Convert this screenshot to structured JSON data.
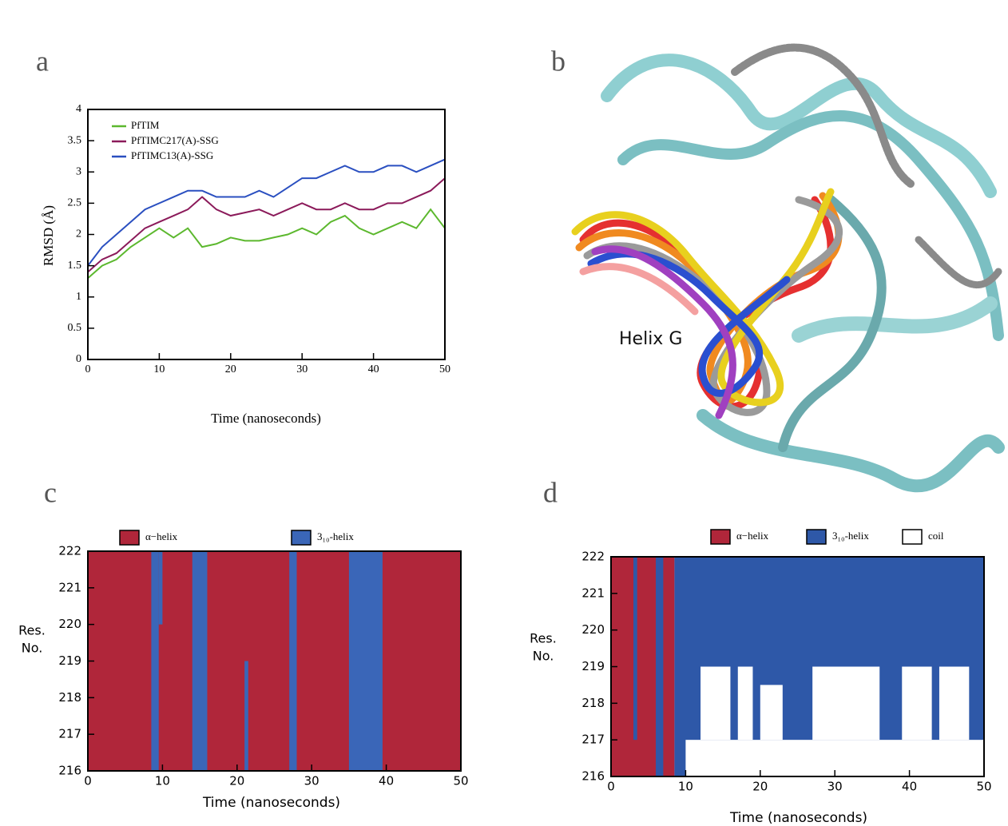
{
  "chart_data": [
    {
      "type": "line",
      "panel_label": "a",
      "xlabel": "Time (nanoseconds)",
      "ylabel": "RMSD (Å)",
      "x": [
        0,
        2,
        4,
        6,
        8,
        10,
        12,
        14,
        16,
        18,
        20,
        22,
        24,
        26,
        28,
        30,
        32,
        34,
        36,
        38,
        40,
        42,
        44,
        46,
        48,
        50
      ],
      "xlim": [
        0,
        50
      ],
      "xticks": [
        0,
        10,
        20,
        30,
        40,
        50
      ],
      "ylim": [
        0,
        4
      ],
      "yticks": [
        0,
        0.5,
        1,
        1.5,
        2,
        2.5,
        3,
        3.5,
        4
      ],
      "series": [
        {
          "name": "PfTIM",
          "color": "#5cb82e",
          "values": [
            1.3,
            1.5,
            1.6,
            1.8,
            1.95,
            2.1,
            1.95,
            2.1,
            1.8,
            1.85,
            1.95,
            1.9,
            1.9,
            1.95,
            2.0,
            2.1,
            2.0,
            2.2,
            2.3,
            2.1,
            2.0,
            2.1,
            2.2,
            2.1,
            2.4,
            2.1
          ]
        },
        {
          "name": "PfTIMC217(A)-SSG",
          "color": "#8b1a5a",
          "values": [
            1.4,
            1.6,
            1.7,
            1.9,
            2.1,
            2.2,
            2.3,
            2.4,
            2.6,
            2.4,
            2.3,
            2.35,
            2.4,
            2.3,
            2.4,
            2.5,
            2.4,
            2.4,
            2.5,
            2.4,
            2.4,
            2.5,
            2.5,
            2.6,
            2.7,
            2.9
          ]
        },
        {
          "name": "PfTIMC13(A)-SSG",
          "color": "#2a4fc0",
          "values": [
            1.5,
            1.8,
            2.0,
            2.2,
            2.4,
            2.5,
            2.6,
            2.7,
            2.7,
            2.6,
            2.6,
            2.6,
            2.7,
            2.6,
            2.75,
            2.9,
            2.9,
            3.0,
            3.1,
            3.0,
            3.0,
            3.1,
            3.1,
            3.0,
            3.1,
            3.2
          ]
        }
      ]
    },
    {
      "type": "timeline",
      "panel_label": "c",
      "xlabel": "Time (nanoseconds)",
      "ylabel": [
        "Res.",
        "No."
      ],
      "xlim": [
        0,
        50
      ],
      "xticks": [
        0,
        10,
        20,
        30,
        40,
        50
      ],
      "ylim": [
        216,
        222
      ],
      "yticks": [
        216,
        217,
        218,
        219,
        220,
        221,
        222
      ],
      "series": [
        {
          "name": "α−helix",
          "color": "#b0263a",
          "intervals": [
            [
              0,
              50,
              216,
              222
            ]
          ]
        },
        {
          "name": "3₁₀-helix",
          "color": "#3a66b8",
          "intervals": [
            [
              8.5,
              9.5,
              216,
              222
            ],
            [
              14,
              16,
              216,
              222
            ],
            [
              27,
              28,
              216,
              222
            ],
            [
              35,
              39.5,
              216,
              222
            ],
            [
              9.5,
              10,
              220,
              222
            ],
            [
              21,
              21.5,
              216,
              219
            ]
          ]
        }
      ]
    },
    {
      "type": "timeline",
      "panel_label": "d",
      "xlabel": "Time (nanoseconds)",
      "ylabel": [
        "Res.",
        "No."
      ],
      "xlim": [
        0,
        50
      ],
      "xticks": [
        0,
        10,
        20,
        30,
        40,
        50
      ],
      "ylim": [
        216,
        222
      ],
      "yticks": [
        216,
        217,
        218,
        219,
        220,
        221,
        222
      ],
      "series": [
        {
          "name": "α−helix",
          "color": "#b0263a",
          "intervals": [
            [
              0,
              8.5,
              216,
              222
            ]
          ]
        },
        {
          "name": "3₁₀-helix",
          "color": "#2e58a8",
          "intervals": [
            [
              8.5,
              50,
              216,
              222
            ],
            [
              3,
              3.5,
              217,
              222
            ],
            [
              6,
              7,
              216,
              222
            ]
          ]
        },
        {
          "name": "coil",
          "color": "#ffffff",
          "intervals": [
            [
              10,
              50,
              216,
              217
            ],
            [
              12,
              16,
              217,
              219
            ],
            [
              17,
              19,
              217,
              219
            ],
            [
              20,
              23,
              217,
              218.5
            ],
            [
              27,
              36,
              217,
              219
            ],
            [
              39,
              43,
              217,
              219
            ],
            [
              44,
              48,
              217,
              219
            ]
          ]
        }
      ]
    }
  ],
  "image": {
    "panel_label": "b",
    "label": "Helix G"
  }
}
